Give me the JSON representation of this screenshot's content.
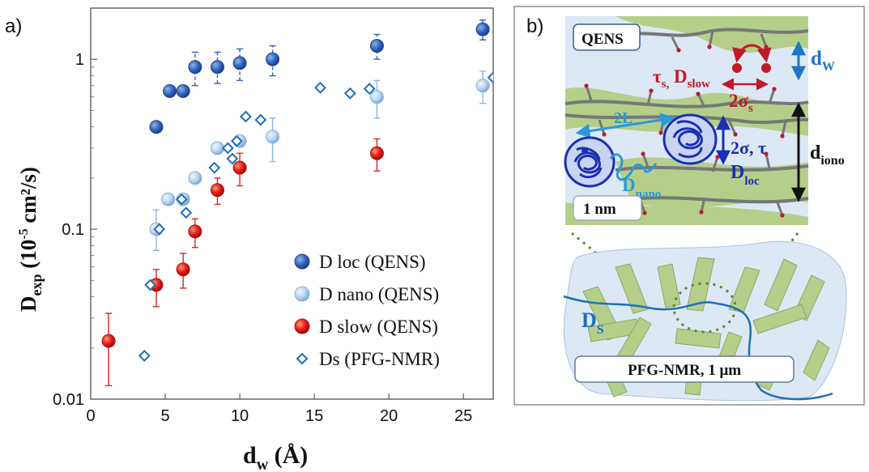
{
  "panels": {
    "a": "a)",
    "b": "b)"
  },
  "chart_data": {
    "type": "scatter",
    "xlabel_main": "d",
    "xlabel_sub": "w",
    "xlabel_unit": " (Å)",
    "ylabel_main": "D",
    "ylabel_sub": "exp",
    "ylabel_unit_pre": " (10",
    "ylabel_unit_sup": "-5",
    "ylabel_unit_post": " cm²/s)",
    "xlim": [
      0,
      27
    ],
    "ylim": [
      0.01,
      2.0
    ],
    "yscale": "log",
    "x_ticks": [
      0,
      5,
      10,
      15,
      20,
      25
    ],
    "y_ticks": [
      {
        "value": 0.01,
        "label": "0.01"
      },
      {
        "value": 0.1,
        "label": "0.1"
      },
      {
        "value": 1,
        "label": "1"
      }
    ],
    "legend_position": "bottom-right",
    "series": [
      {
        "name": "D loc (QENS)",
        "color": "#2f5fb3",
        "marker": "circle-dark",
        "points": [
          {
            "x": 4.4,
            "y": 0.4,
            "lo": 0.37,
            "hi": 0.43
          },
          {
            "x": 5.3,
            "y": 0.65
          },
          {
            "x": 6.2,
            "y": 0.65
          },
          {
            "x": 7.0,
            "y": 0.9,
            "lo": 0.7,
            "hi": 1.1
          },
          {
            "x": 8.5,
            "y": 0.9,
            "lo": 0.72,
            "hi": 1.1
          },
          {
            "x": 10.0,
            "y": 0.95,
            "lo": 0.75,
            "hi": 1.15
          },
          {
            "x": 12.2,
            "y": 1.0,
            "lo": 0.8,
            "hi": 1.2
          },
          {
            "x": 19.2,
            "y": 1.2,
            "lo": 1.0,
            "hi": 1.4
          },
          {
            "x": 26.3,
            "y": 1.5,
            "lo": 1.3,
            "hi": 1.7
          }
        ]
      },
      {
        "name": "D nano (QENS)",
        "color": "#a7c9ec",
        "marker": "circle-light",
        "points": [
          {
            "x": 4.4,
            "y": 0.1,
            "lo": 0.075,
            "hi": 0.13
          },
          {
            "x": 5.2,
            "y": 0.15
          },
          {
            "x": 6.2,
            "y": 0.15
          },
          {
            "x": 7.0,
            "y": 0.2
          },
          {
            "x": 8.5,
            "y": 0.3
          },
          {
            "x": 10.0,
            "y": 0.33
          },
          {
            "x": 12.2,
            "y": 0.35,
            "lo": 0.25,
            "hi": 0.45
          },
          {
            "x": 19.2,
            "y": 0.6,
            "lo": 0.45,
            "hi": 0.75
          },
          {
            "x": 26.3,
            "y": 0.7,
            "lo": 0.55,
            "hi": 0.85
          }
        ]
      },
      {
        "name": "D slow (QENS)",
        "color": "#e31a1c",
        "marker": "circle-red",
        "points": [
          {
            "x": 1.2,
            "y": 0.022,
            "lo": 0.012,
            "hi": 0.032
          },
          {
            "x": 4.4,
            "y": 0.047,
            "lo": 0.035,
            "hi": 0.058
          },
          {
            "x": 6.2,
            "y": 0.058,
            "lo": 0.045,
            "hi": 0.072
          },
          {
            "x": 7.0,
            "y": 0.097,
            "lo": 0.078,
            "hi": 0.115
          },
          {
            "x": 8.5,
            "y": 0.17,
            "lo": 0.14,
            "hi": 0.2
          },
          {
            "x": 10.0,
            "y": 0.23,
            "lo": 0.18,
            "hi": 0.28
          },
          {
            "x": 19.2,
            "y": 0.28,
            "lo": 0.22,
            "hi": 0.34
          }
        ]
      },
      {
        "name": "Ds  (PFG-NMR)",
        "color": "#1f6fb5",
        "marker": "diamond-open",
        "points": [
          {
            "x": 3.6,
            "y": 0.018
          },
          {
            "x": 4.0,
            "y": 0.047
          },
          {
            "x": 4.6,
            "y": 0.1
          },
          {
            "x": 6.1,
            "y": 0.15
          },
          {
            "x": 6.4,
            "y": 0.125
          },
          {
            "x": 8.3,
            "y": 0.23
          },
          {
            "x": 9.2,
            "y": 0.3
          },
          {
            "x": 9.5,
            "y": 0.26
          },
          {
            "x": 9.8,
            "y": 0.33
          },
          {
            "x": 10.4,
            "y": 0.46
          },
          {
            "x": 11.4,
            "y": 0.44
          },
          {
            "x": 15.4,
            "y": 0.68
          },
          {
            "x": 17.4,
            "y": 0.63
          },
          {
            "x": 18.7,
            "y": 0.67
          },
          {
            "x": 27.0,
            "y": 0.78
          }
        ]
      }
    ]
  },
  "diagram": {
    "qens_box": "QENS",
    "tau_s": "τ",
    "tau_s_sub": "s,",
    "d_slow": " D",
    "d_slow_sub": "slow",
    "sigma_s": "2σ",
    "sigma_s_sub": "s",
    "d_w": "d",
    "d_w_sub": "W",
    "two_L": "2L",
    "two_sigma_tau": "2σ, τ",
    "d_nano": "D",
    "d_nano_sub": "nano",
    "d_loc": "D",
    "d_loc_sub": "loc",
    "d_iono": "d",
    "d_iono_sub": "iono",
    "scale_1nm": "1 nm",
    "d_s": "D",
    "d_s_sub": "S",
    "pfg_box": "PFG-NMR, 1 μm",
    "colors": {
      "background_blue": "#dde8f5",
      "fiber_green": "#b5cf8a",
      "chain_gray": "#777777",
      "dark_red": "#c0192b",
      "blue": "#1f75c7",
      "navy": "#1a2fb5"
    }
  }
}
